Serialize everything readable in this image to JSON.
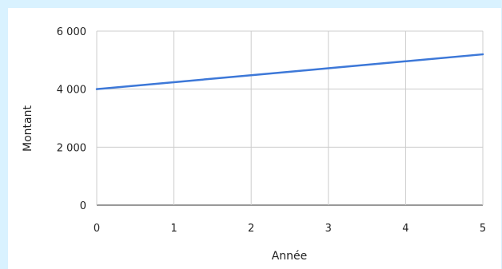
{
  "chart_data": {
    "type": "line",
    "title": "",
    "xlabel": "Année",
    "ylabel": "Montant",
    "x": [
      0,
      1,
      2,
      3,
      4,
      5
    ],
    "series": [
      {
        "values": [
          4000,
          4240,
          4480,
          4720,
          4960,
          5200
        ]
      }
    ],
    "xlim": [
      0,
      5
    ],
    "ylim": [
      0,
      6000
    ],
    "xticks": [
      "0",
      "1",
      "2",
      "3",
      "4",
      "5"
    ],
    "yticks": [
      {
        "value": 0,
        "label": "0"
      },
      {
        "value": 2000,
        "label": "2 000"
      },
      {
        "value": 4000,
        "label": "4 000"
      },
      {
        "value": 6000,
        "label": "6 000"
      }
    ],
    "grid": true,
    "legend": "none",
    "colors": {
      "page_background": "#d9f2ff",
      "panel_background": "#ffffff",
      "line": "#3d78d8",
      "grid": "#cccccc",
      "baseline": "#333333",
      "text": "#1f1f1f"
    }
  }
}
